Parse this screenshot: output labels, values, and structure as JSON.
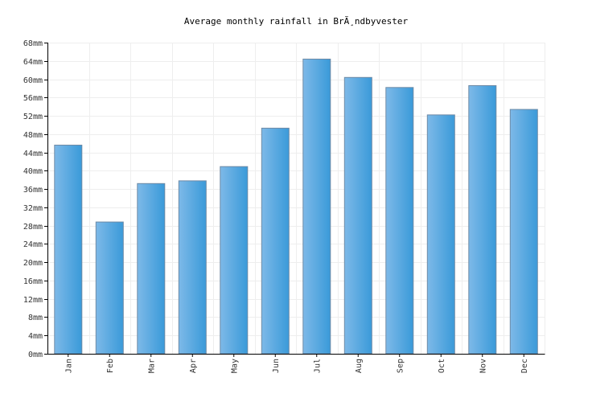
{
  "chart_data": {
    "type": "bar",
    "title": "Average monthly rainfall in BrÃ¸ndbyvester",
    "xlabel": "",
    "ylabel": "",
    "categories": [
      "Jan",
      "Feb",
      "Mar",
      "Apr",
      "May",
      "Jun",
      "Jul",
      "Aug",
      "Sep",
      "Oct",
      "Nov",
      "Dec"
    ],
    "values": [
      45.6,
      28.8,
      37.2,
      37.8,
      40.9,
      49.3,
      64.4,
      60.4,
      58.2,
      52.2,
      58.6,
      53.4
    ],
    "unit": "mm",
    "ylim": [
      0,
      68
    ],
    "yticks": [
      "0mm",
      "4mm",
      "8mm",
      "12mm",
      "16mm",
      "20mm",
      "24mm",
      "28mm",
      "32mm",
      "36mm",
      "40mm",
      "44mm",
      "48mm",
      "52mm",
      "56mm",
      "60mm",
      "64mm",
      "68mm"
    ],
    "grid": true,
    "bar_color_light": "#7db9e8",
    "bar_color_dark": "#3a9ad9"
  }
}
